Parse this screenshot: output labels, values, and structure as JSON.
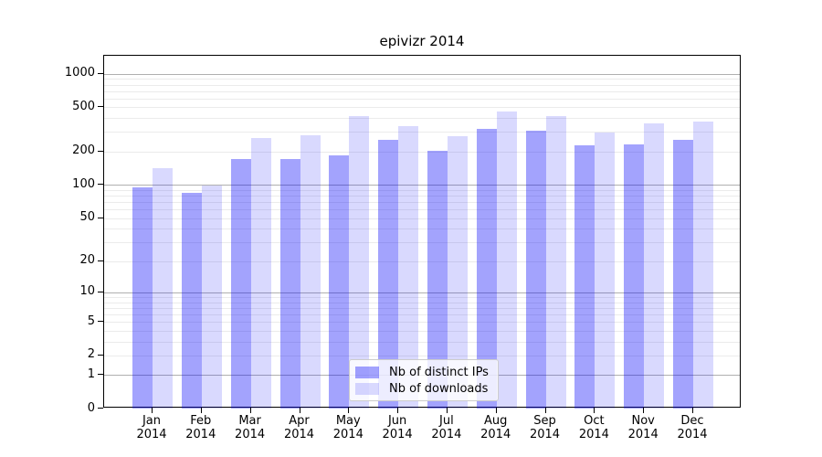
{
  "chart_data": {
    "type": "bar",
    "title": "epivizr 2014",
    "categories": [
      "Jan 2014",
      "Feb 2014",
      "Mar 2014",
      "Apr 2014",
      "May 2014",
      "Jun 2014",
      "Jul 2014",
      "Aug 2014",
      "Sep 2014",
      "Oct 2014",
      "Nov 2014",
      "Dec 2014"
    ],
    "x_tick_months": [
      "Jan",
      "Feb",
      "Mar",
      "Apr",
      "May",
      "Jun",
      "Jul",
      "Aug",
      "Sep",
      "Oct",
      "Nov",
      "Dec"
    ],
    "x_tick_year": "2014",
    "series": [
      {
        "name": "Nb of distinct IPs",
        "color": "rgba(0,0,250,0.36)",
        "color_on_white": "#a3a3f7",
        "values": [
          95,
          84,
          171,
          171,
          186,
          253,
          205,
          320,
          310,
          226,
          234,
          253
        ]
      },
      {
        "name": "Nb of downloads",
        "color": "rgba(0,0,250,0.15)",
        "color_on_white": "#d9d9fd",
        "values": [
          142,
          98,
          266,
          278,
          420,
          340,
          273,
          460,
          414,
          297,
          362,
          376
        ]
      }
    ],
    "xlabel": "",
    "ylabel": "",
    "y_scale": "log1p",
    "y_ticks": [
      0,
      1,
      2,
      5,
      10,
      20,
      50,
      100,
      200,
      500,
      1000
    ],
    "ylim": [
      0,
      1450
    ],
    "grid": {
      "major_lines": [
        1,
        10,
        100,
        1000
      ],
      "minor_lines": true,
      "major_color": "#b0b0b0",
      "minor_color": "#ebebeb"
    },
    "legend": {
      "position": "bottom-center",
      "entries": [
        "Nb of distinct IPs",
        "Nb of downloads"
      ]
    }
  }
}
